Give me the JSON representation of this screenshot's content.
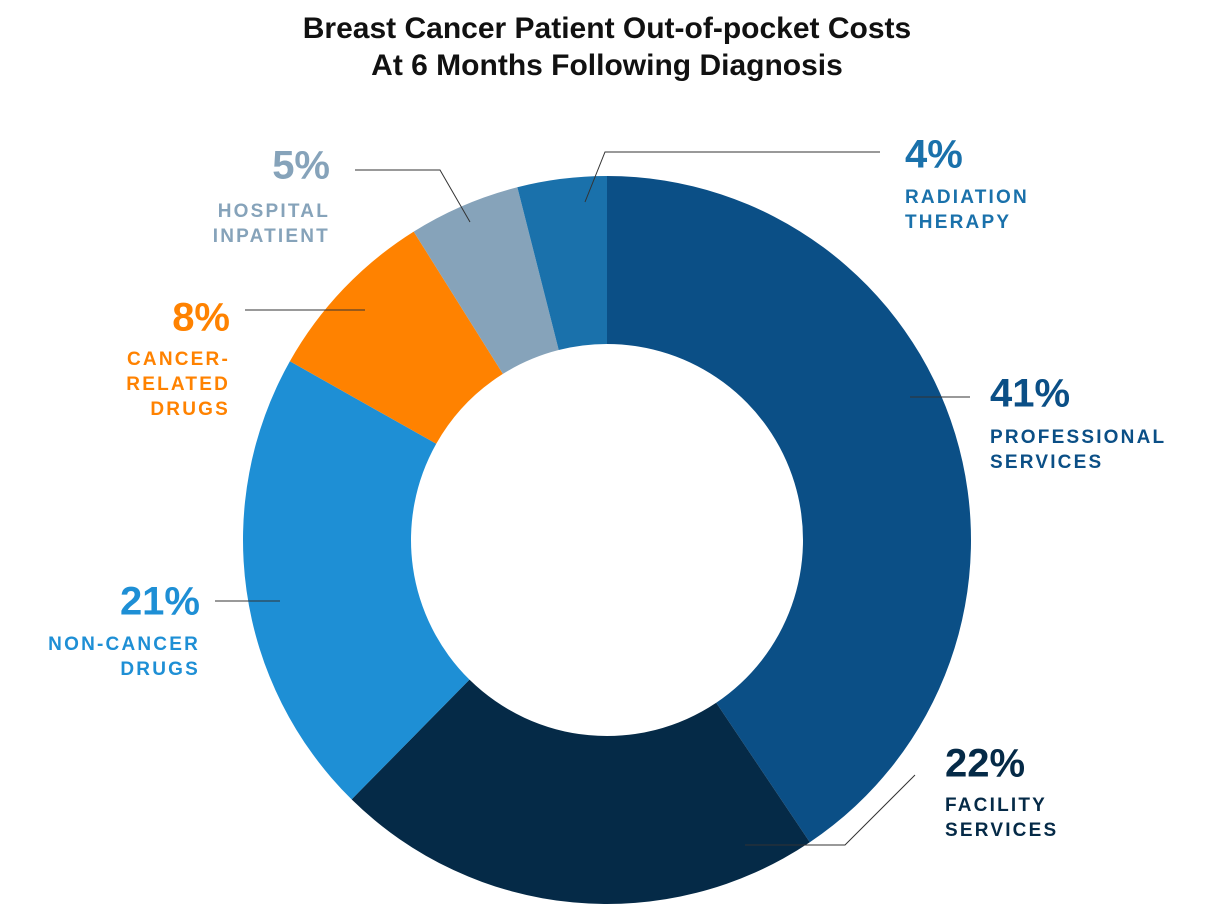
{
  "chart_data": {
    "type": "donut",
    "title": "Breast Cancer Patient Out-of-pocket Costs",
    "subtitle": "At 6 Months Following Diagnosis",
    "categories": [
      "PROFESSIONAL\nSERVICES",
      "FACILITY\nSERVICES",
      "NON-CANCER\nDRUGS",
      "CANCER-\nRELATED\nDRUGS",
      "HOSPITAL\nINPATIENT",
      "RADIATION\nTHERAPY"
    ],
    "values": [
      41,
      22,
      21,
      8,
      5,
      4
    ],
    "value_labels": [
      "41%",
      "22%",
      "21%",
      "8%",
      "5%",
      "4%"
    ],
    "colors": [
      "#0b4f86",
      "#052a47",
      "#1e8fd5",
      "#ff8200",
      "#86a3ba",
      "#1a71ab"
    ]
  }
}
